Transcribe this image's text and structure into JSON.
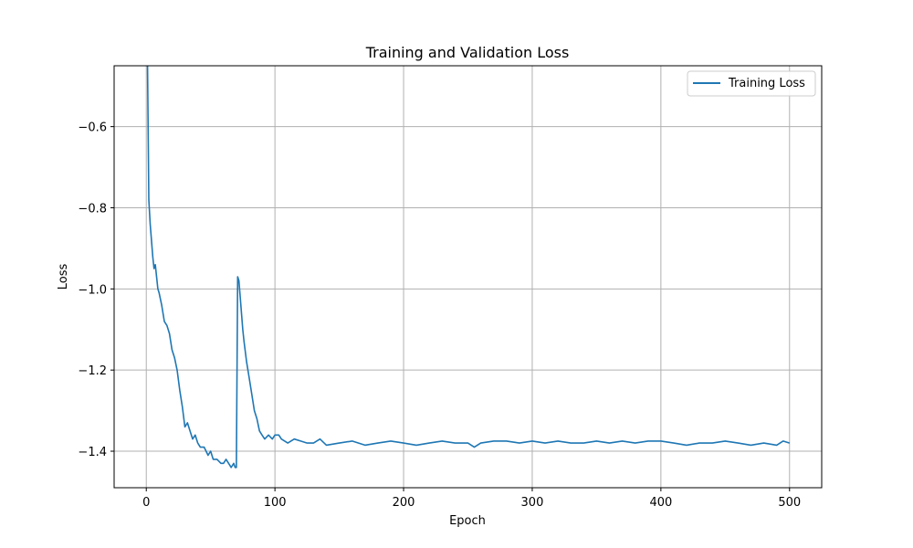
{
  "chart_data": {
    "type": "line",
    "title": "Training and Validation Loss",
    "xlabel": "Epoch",
    "ylabel": "Loss",
    "xlim": [
      -25,
      525
    ],
    "ylim": [
      -1.49,
      -0.45
    ],
    "xticks": [
      0,
      100,
      200,
      300,
      400,
      500
    ],
    "yticks": [
      -1.4,
      -1.2,
      -1.0,
      -0.8,
      -0.6
    ],
    "xtick_labels": [
      "0",
      "100",
      "200",
      "300",
      "400",
      "500"
    ],
    "ytick_labels": [
      "−1.4",
      "−1.2",
      "−1.0",
      "−0.8",
      "−0.6"
    ],
    "grid": true,
    "legend_position": "top-right",
    "line_color": "#1f77b4",
    "series": [
      {
        "name": "Training Loss",
        "x": [
          1,
          2,
          3,
          4,
          5,
          6,
          7,
          8,
          9,
          10,
          12,
          14,
          16,
          18,
          20,
          22,
          24,
          26,
          28,
          30,
          32,
          34,
          36,
          38,
          40,
          42,
          45,
          48,
          50,
          52,
          55,
          58,
          60,
          62,
          64,
          66,
          68,
          69,
          70,
          71,
          72,
          73,
          74,
          75,
          76,
          78,
          80,
          82,
          84,
          86,
          88,
          90,
          92,
          95,
          98,
          100,
          103,
          105,
          110,
          115,
          120,
          125,
          130,
          135,
          140,
          150,
          160,
          170,
          180,
          190,
          200,
          210,
          220,
          230,
          240,
          250,
          255,
          260,
          270,
          280,
          290,
          300,
          310,
          320,
          330,
          340,
          350,
          360,
          370,
          380,
          390,
          400,
          410,
          420,
          430,
          440,
          450,
          460,
          470,
          480,
          490,
          495,
          500
        ],
        "y": [
          -0.45,
          -0.78,
          -0.84,
          -0.88,
          -0.92,
          -0.95,
          -0.94,
          -0.97,
          -1.0,
          -1.01,
          -1.04,
          -1.08,
          -1.09,
          -1.11,
          -1.15,
          -1.17,
          -1.2,
          -1.25,
          -1.29,
          -1.34,
          -1.33,
          -1.35,
          -1.37,
          -1.36,
          -1.38,
          -1.39,
          -1.39,
          -1.41,
          -1.4,
          -1.42,
          -1.42,
          -1.43,
          -1.43,
          -1.42,
          -1.43,
          -1.44,
          -1.43,
          -1.44,
          -1.44,
          -0.97,
          -0.98,
          -1.02,
          -1.06,
          -1.1,
          -1.13,
          -1.18,
          -1.22,
          -1.26,
          -1.3,
          -1.32,
          -1.35,
          -1.36,
          -1.37,
          -1.36,
          -1.37,
          -1.36,
          -1.36,
          -1.37,
          -1.38,
          -1.37,
          -1.375,
          -1.38,
          -1.38,
          -1.37,
          -1.385,
          -1.38,
          -1.375,
          -1.385,
          -1.38,
          -1.375,
          -1.38,
          -1.385,
          -1.38,
          -1.375,
          -1.38,
          -1.38,
          -1.39,
          -1.38,
          -1.375,
          -1.375,
          -1.38,
          -1.375,
          -1.38,
          -1.375,
          -1.38,
          -1.38,
          -1.375,
          -1.38,
          -1.375,
          -1.38,
          -1.375,
          -1.375,
          -1.38,
          -1.385,
          -1.38,
          -1.38,
          -1.375,
          -1.38,
          -1.385,
          -1.38,
          -1.385,
          -1.375,
          -1.38
        ]
      }
    ]
  }
}
